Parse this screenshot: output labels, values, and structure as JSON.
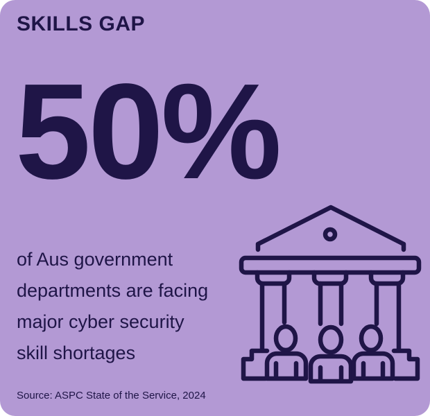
{
  "title": "SKILLS GAP",
  "stat": "50%",
  "description_lines": [
    "of Aus government",
    "departments are facing",
    "major cyber security",
    "skill shortages"
  ],
  "source": "Source: ASPC State of the Service, 2024",
  "colors": {
    "background": "#b399d4",
    "foreground": "#1f1547"
  },
  "icon": "government-building-with-people-icon"
}
